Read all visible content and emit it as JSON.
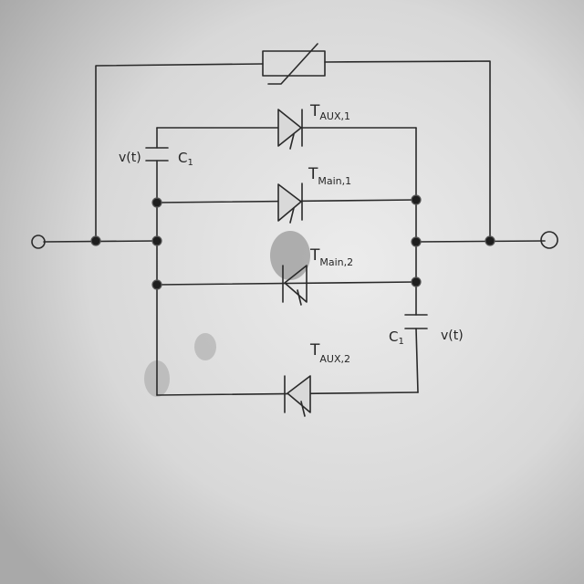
{
  "diagram": {
    "thyristors": [
      {
        "id": "aux1",
        "main": "T",
        "sub": "AUX,1"
      },
      {
        "id": "main1",
        "main": "T",
        "sub": "Main,1"
      },
      {
        "id": "main2",
        "main": "T",
        "sub": "Main,2"
      },
      {
        "id": "aux2",
        "main": "T",
        "sub": "AUX,2"
      }
    ],
    "capacitors": [
      {
        "id": "c-left",
        "name": "C",
        "sub": "1",
        "voltage": "v(t)"
      },
      {
        "id": "c-right",
        "name": "C",
        "sub": "1",
        "voltage": "v(t)"
      }
    ]
  }
}
